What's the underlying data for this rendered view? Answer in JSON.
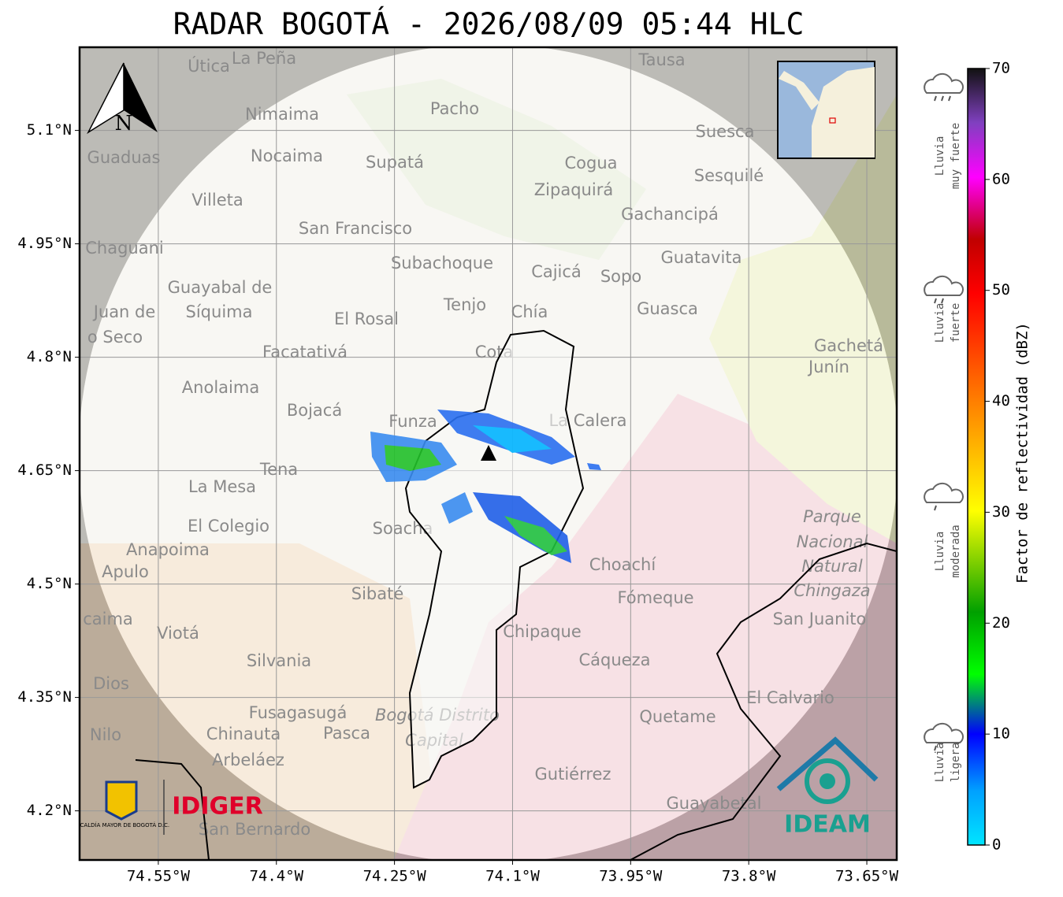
{
  "header": {
    "title": "RADAR BOGOTÁ - 2026/08/09 05:44 HLC"
  },
  "map": {
    "xlim": [
      -74.65,
      -73.612
    ],
    "ylim": [
      4.135,
      5.21
    ],
    "xticks": [
      {
        "value": -74.55,
        "label": "74.55°W"
      },
      {
        "value": -74.4,
        "label": "74.4°W"
      },
      {
        "value": -74.25,
        "label": "74.25°W"
      },
      {
        "value": -74.1,
        "label": "74.1°W"
      },
      {
        "value": -73.95,
        "label": "73.95°W"
      },
      {
        "value": -73.8,
        "label": "73.8°W"
      },
      {
        "value": -73.65,
        "label": "73.65°W"
      }
    ],
    "yticks": [
      {
        "value": 5.1,
        "label": "5.1°N"
      },
      {
        "value": 4.95,
        "label": "4.95°N"
      },
      {
        "value": 4.8,
        "label": "4.8°N"
      },
      {
        "value": 4.65,
        "label": "4.65°N"
      },
      {
        "value": 4.5,
        "label": "4.5°N"
      },
      {
        "value": 4.35,
        "label": "4.35°N"
      },
      {
        "value": 4.2,
        "label": "4.2°N"
      }
    ],
    "north": "N",
    "places": [
      "Útica",
      "La Peña",
      "Tausa",
      "Pacho",
      "Nimaima",
      "Suesca",
      "Guaduas",
      "Nocaima",
      "Supatá",
      "Cogua",
      "Sesquilé",
      "Zipaquirá",
      "Villeta",
      "Gachancipá",
      "San Francisco",
      "Chaguani",
      "Guatavita",
      "Subachoque",
      "Cajicá",
      "Sopo",
      "Guayabal de",
      "Síquima",
      "Tenjo",
      "Chía",
      "Guasca",
      "Juan de",
      "El Rosal",
      "o Seco",
      "Cota",
      "Gachetá",
      "Junín",
      "Facatativá",
      "Anolaima",
      "Bojacá",
      "Funza",
      "La Calera",
      "Tena",
      "La Mesa",
      "Parque",
      "Nacional",
      "Natural",
      "Chingaza",
      "El Colegio",
      "Soacha",
      "Anapoima",
      "Apulo",
      "Choachí",
      "Sibaté",
      "Fómeque",
      "San Juanito",
      "caima",
      "Viotá",
      "Chipaque",
      "Silvania",
      "Cáqueza",
      "Dios",
      "El Calvario",
      "Fusagasugá",
      "Bogotá Distrito",
      "Capital",
      "Quetame",
      "Nilo",
      "Chinauta",
      "Pasca",
      "Arbeláez",
      "Gutiérrez",
      "Guayabetal",
      "San Bernardo"
    ]
  },
  "logos": {
    "alcaldia": "ALCALDÍA MAYOR DE BOGOTÁ D.C.",
    "idiger": "IDIGER",
    "ideam": "IDEAM"
  },
  "colorbar": {
    "clim": [
      0,
      70
    ],
    "ticks": [
      0,
      10,
      20,
      30,
      40,
      50,
      60,
      70
    ],
    "label": "Factor de reflectividad (dBZ)"
  },
  "rain_labels": [
    {
      "line1": "Lluvia",
      "line2": "muy fuerte"
    },
    {
      "line1": "Lluvia",
      "line2": "fuerte"
    },
    {
      "line1": "Lluvia",
      "line2": "moderada"
    },
    {
      "line1": "Lluvia",
      "line2": "ligera"
    }
  ]
}
